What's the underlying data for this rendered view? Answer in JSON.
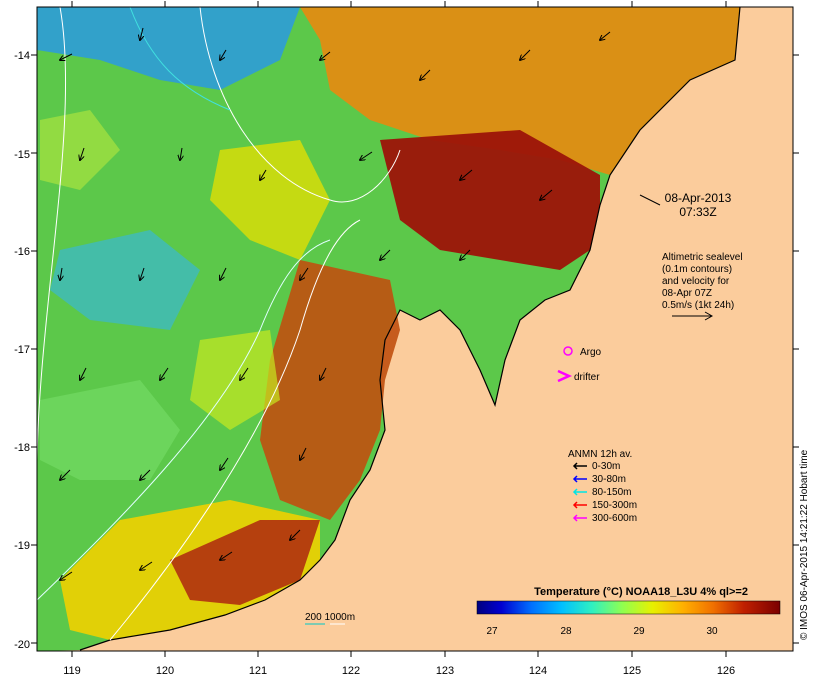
{
  "map": {
    "date": "08-Apr-2013",
    "time": "07:33Z",
    "lon_ticks": [
      "119",
      "120",
      "121",
      "122",
      "123",
      "124",
      "125",
      "126"
    ],
    "lat_ticks": [
      "-14",
      "-15",
      "-16",
      "-17",
      "-18",
      "-19",
      "-20"
    ],
    "lon_range": [
      118.6,
      126.7
    ],
    "lat_range": [
      -20.1,
      -13.5
    ]
  },
  "altimetry_note": [
    "Altimetric sealevel",
    "(0.1m contours)",
    "and velocity for",
    "08-Apr 07Z",
    "0.5m/s (1kt 24h)"
  ],
  "legend": {
    "argo_label": "Argo",
    "drifter_label": "drifter",
    "anmn_title": "ANMN 12h av.",
    "depth_items": [
      {
        "label": "0-30m",
        "color": "#000000"
      },
      {
        "label": "30-80m",
        "color": "#0000ff"
      },
      {
        "label": "80-150m",
        "color": "#00e5e5"
      },
      {
        "label": "150-300m",
        "color": "#ff0000"
      },
      {
        "label": "300-600m",
        "color": "#ff00ff"
      }
    ],
    "isobath_label": "200  1000m"
  },
  "colorbar": {
    "title": "Temperature (°C) NOAA18_L3U 4% ql>=2",
    "ticks": [
      "27",
      "28",
      "29",
      "30"
    ],
    "colors": [
      "#00007f",
      "#0000c8",
      "#0020ff",
      "#0070ff",
      "#00b0ff",
      "#20e0e0",
      "#40f0a0",
      "#80ff60",
      "#c0ff20",
      "#f0f000",
      "#ffc000",
      "#ff8000",
      "#e05000",
      "#c02000",
      "#8b0000",
      "#7a0000"
    ]
  },
  "colors": {
    "land": "#fbcc9c",
    "coast": "#000000"
  },
  "credit": "© IMOS 06-Apr-2015 14:21:22 Hobart time"
}
